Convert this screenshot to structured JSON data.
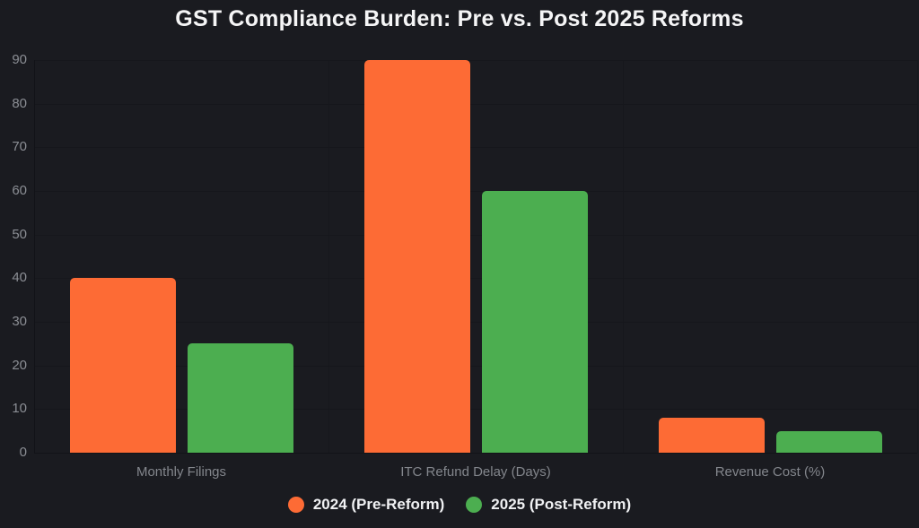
{
  "title": "GST Compliance Burden: Pre vs. Post 2025 Reforms",
  "colors": {
    "background": "#1a1b20",
    "grid": "#16171c",
    "axis": "#121317",
    "tick_label": "#8b8e94",
    "category_label": "#83868c",
    "title_text": "#f5f5f6",
    "legend_text": "#f0f1f3",
    "pre_reform": "#fd6b35",
    "post_reform": "#4cae50"
  },
  "chart_data": {
    "type": "bar",
    "title": "GST Compliance Burden: Pre vs. Post 2025 Reforms",
    "categories": [
      "Monthly Filings",
      "ITC Refund Delay (Days)",
      "Revenue Cost (%)"
    ],
    "series": [
      {
        "name": "2024 (Pre-Reform)",
        "color": "#fd6b35",
        "values": [
          40,
          90,
          8
        ]
      },
      {
        "name": "2025 (Post-Reform)",
        "color": "#4cae50",
        "values": [
          25,
          60,
          5
        ]
      }
    ],
    "xlabel": "",
    "ylabel": "",
    "ylim": [
      0,
      90
    ],
    "yticks": [
      0,
      10,
      20,
      30,
      40,
      50,
      60,
      70,
      80,
      90
    ],
    "grid": true,
    "legend_position": "bottom"
  }
}
